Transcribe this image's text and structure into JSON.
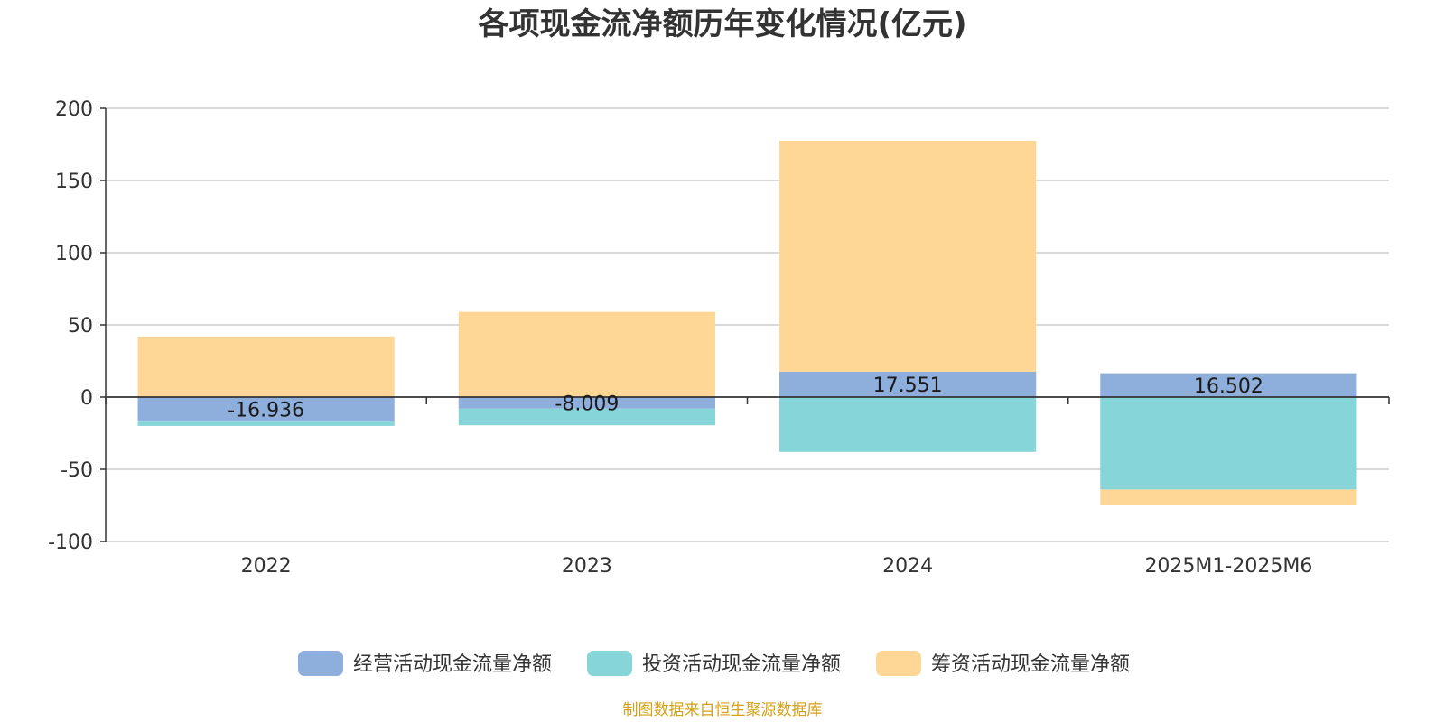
{
  "chart_data": {
    "type": "bar",
    "stacked": true,
    "title": "各项现金流净额历年变化情况(亿元)",
    "categories": [
      "2022",
      "2023",
      "2024",
      "2025M1-2025M6"
    ],
    "ylim": [
      -100,
      200
    ],
    "yticks": [
      "200",
      "150",
      "100",
      "50",
      "0",
      "-50",
      "-100"
    ],
    "ytick_values": [
      200,
      150,
      100,
      50,
      0,
      -50,
      -100
    ],
    "grid": true,
    "legend_position": "bottom",
    "series": [
      {
        "name": "经营活动现金流量净额",
        "color": "#8eaedc",
        "values": [
          -16.936,
          -8.009,
          17.551,
          16.502
        ],
        "labels": [
          "-16.936",
          "-8.009",
          "17.551",
          "16.502"
        ]
      },
      {
        "name": "投资活动现金流量净额",
        "color": "#86d5d8",
        "values": [
          -3,
          -11.5,
          -38,
          -64
        ]
      },
      {
        "name": "筹资活动现金流量净额",
        "color": "#fed797",
        "values": [
          42,
          59,
          160,
          -11
        ]
      }
    ],
    "source": "制图数据来自恒生聚源数据库",
    "source_color": "#d4a017"
  }
}
